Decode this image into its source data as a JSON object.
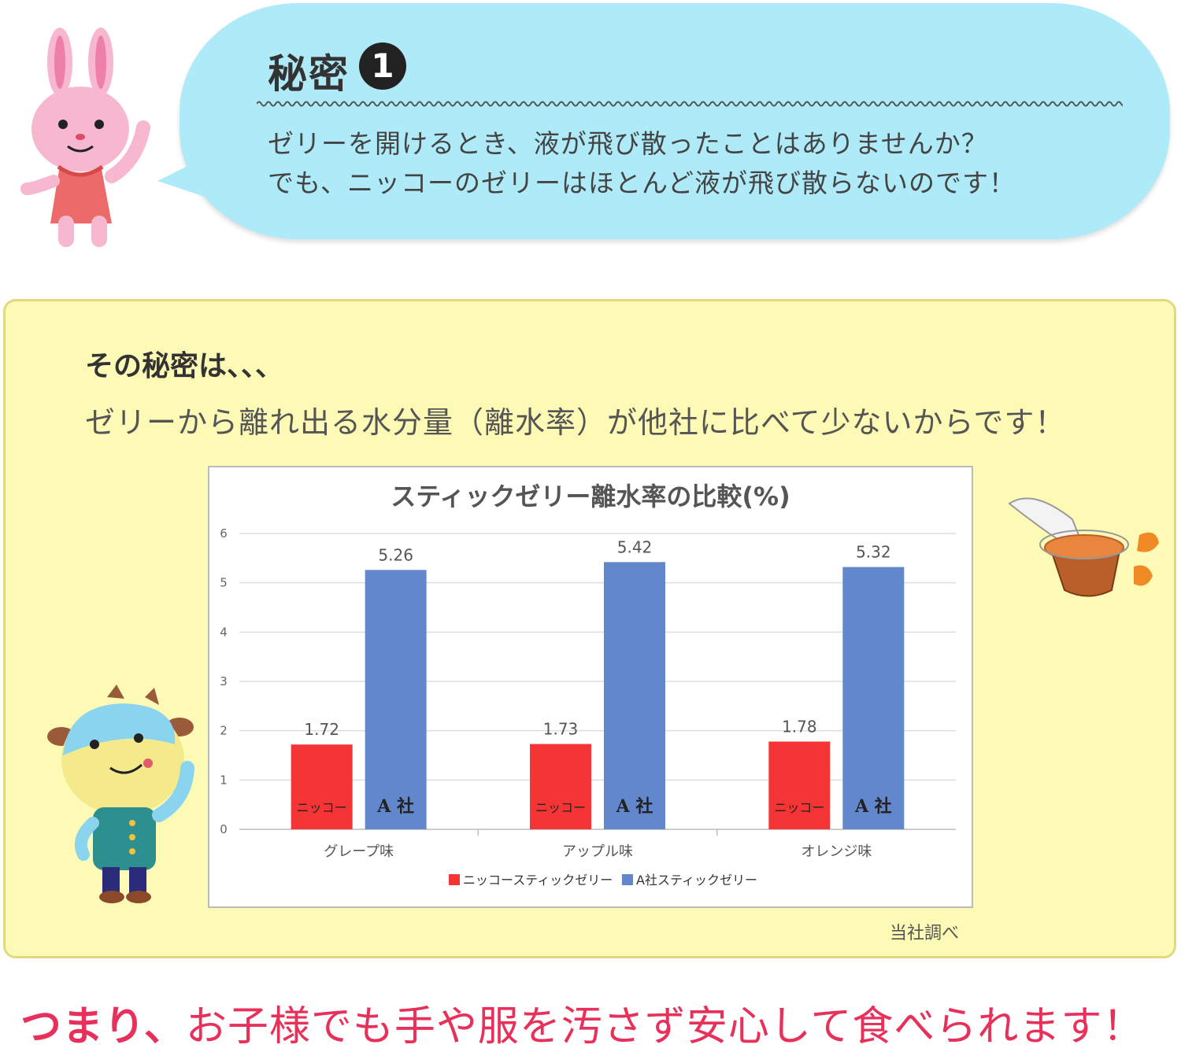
{
  "bubble": {
    "title": "秘密",
    "number": "1",
    "line1": "ゼリーを開けるとき、液が飛び散ったことはありませんか？",
    "line2": "でも、ニッコーのゼリーはほとんど液が飛び散らないのです！"
  },
  "panel": {
    "heading": "その秘密は、、、",
    "text": "ゼリーから離れ出る水分量（離水率）が他社に比べて少ないからです！",
    "source_note": "当社調べ"
  },
  "conclusion": {
    "lead": "つまり、",
    "rest": "お子様でも手や服を汚さず安心して食べられます！"
  },
  "colors": {
    "nikko": "#f53535",
    "company_a": "#6387cc",
    "bubble": "#aeeaf8",
    "panel": "#fdfab6",
    "accent": "#e8315a"
  },
  "chart_data": {
    "type": "bar",
    "title": "スティックゼリー離水率の比較(%)",
    "categories": [
      "グレープ味",
      "アップル味",
      "オレンジ味"
    ],
    "series": [
      {
        "name": "ニッコースティックゼリー",
        "bar_label": "ニッコー",
        "values": [
          1.72,
          1.73,
          1.78
        ]
      },
      {
        "name": "A社スティックゼリー",
        "bar_label": "A 社",
        "values": [
          5.26,
          5.42,
          5.32
        ]
      }
    ],
    "value_labels": [
      [
        "1.72",
        "1.73",
        "1.78"
      ],
      [
        "5.26",
        "5.42",
        "5.32"
      ]
    ],
    "y_ticks": [
      "0",
      "1",
      "2",
      "3",
      "4",
      "5",
      "6"
    ],
    "ylim": [
      0,
      6
    ],
    "grid": true,
    "legend": "bottom"
  }
}
